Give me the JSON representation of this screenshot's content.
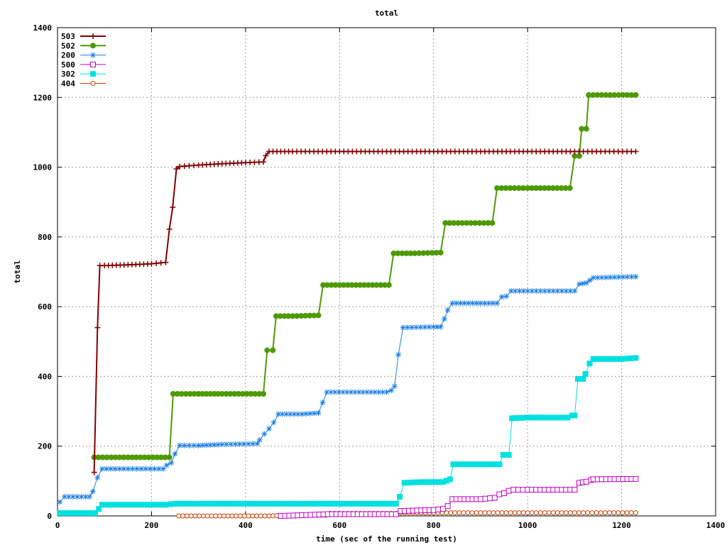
{
  "chart_data": {
    "type": "line",
    "title": "total",
    "xlabel": "time (sec of the running test)",
    "ylabel": "total",
    "xlim": [
      0,
      1400
    ],
    "ylim": [
      0,
      1400
    ],
    "xticks": [
      0,
      200,
      400,
      600,
      800,
      1000,
      1200,
      1400
    ],
    "yticks": [
      0,
      200,
      400,
      600,
      800,
      1000,
      1200,
      1400
    ],
    "grid": true,
    "legend_position": "top-left",
    "series": [
      {
        "name": "503",
        "color": "#800000",
        "marker": "plus",
        "points": [
          [
            78,
            125
          ],
          [
            85,
            540
          ],
          [
            90,
            718
          ],
          [
            100,
            718
          ],
          [
            150,
            720
          ],
          [
            200,
            723
          ],
          [
            230,
            727
          ],
          [
            238,
            822
          ],
          [
            245,
            885
          ],
          [
            253,
            995
          ],
          [
            260,
            1002
          ],
          [
            300,
            1006
          ],
          [
            350,
            1010
          ],
          [
            400,
            1013
          ],
          [
            438,
            1015
          ],
          [
            443,
            1033
          ],
          [
            450,
            1045
          ],
          [
            500,
            1045
          ],
          [
            600,
            1045
          ],
          [
            700,
            1045
          ],
          [
            800,
            1045
          ],
          [
            900,
            1045
          ],
          [
            1000,
            1045
          ],
          [
            1100,
            1045
          ],
          [
            1230,
            1045
          ]
        ]
      },
      {
        "name": "502",
        "color": "#4e9a06",
        "marker": "filled-circle",
        "points": [
          [
            78,
            168
          ],
          [
            150,
            168
          ],
          [
            238,
            168
          ],
          [
            246,
            350
          ],
          [
            300,
            350
          ],
          [
            350,
            350
          ],
          [
            438,
            350
          ],
          [
            446,
            475
          ],
          [
            458,
            475
          ],
          [
            465,
            573
          ],
          [
            500,
            573
          ],
          [
            555,
            575
          ],
          [
            565,
            662
          ],
          [
            600,
            662
          ],
          [
            705,
            662
          ],
          [
            715,
            753
          ],
          [
            760,
            753
          ],
          [
            815,
            755
          ],
          [
            825,
            840
          ],
          [
            870,
            840
          ],
          [
            925,
            840
          ],
          [
            935,
            940
          ],
          [
            1000,
            940
          ],
          [
            1090,
            940
          ],
          [
            1100,
            1032
          ],
          [
            1110,
            1032
          ],
          [
            1115,
            1110
          ],
          [
            1125,
            1110
          ],
          [
            1130,
            1207
          ],
          [
            1230,
            1207
          ]
        ]
      },
      {
        "name": "200",
        "color": "#1e7fe0",
        "marker": "star",
        "points": [
          [
            5,
            40
          ],
          [
            15,
            55
          ],
          [
            60,
            55
          ],
          [
            68,
            55
          ],
          [
            75,
            70
          ],
          [
            85,
            110
          ],
          [
            95,
            135
          ],
          [
            150,
            135
          ],
          [
            225,
            135
          ],
          [
            232,
            145
          ],
          [
            242,
            152
          ],
          [
            250,
            178
          ],
          [
            260,
            202
          ],
          [
            300,
            202
          ],
          [
            350,
            205
          ],
          [
            425,
            207
          ],
          [
            430,
            218
          ],
          [
            440,
            235
          ],
          [
            450,
            250
          ],
          [
            460,
            268
          ],
          [
            470,
            292
          ],
          [
            520,
            292
          ],
          [
            555,
            295
          ],
          [
            573,
            355
          ],
          [
            650,
            355
          ],
          [
            700,
            355
          ],
          [
            710,
            360
          ],
          [
            717,
            372
          ],
          [
            725,
            462
          ],
          [
            735,
            540
          ],
          [
            800,
            542
          ],
          [
            815,
            542
          ],
          [
            823,
            565
          ],
          [
            830,
            590
          ],
          [
            840,
            610
          ],
          [
            900,
            610
          ],
          [
            935,
            610
          ],
          [
            945,
            628
          ],
          [
            955,
            630
          ],
          [
            965,
            645
          ],
          [
            1000,
            645
          ],
          [
            1100,
            645
          ],
          [
            1110,
            665
          ],
          [
            1125,
            668
          ],
          [
            1140,
            683
          ],
          [
            1230,
            686
          ]
        ]
      },
      {
        "name": "500",
        "color": "#c000c0",
        "marker": "open-square",
        "points": [
          [
            475,
            0
          ],
          [
            520,
            2
          ],
          [
            575,
            5
          ],
          [
            720,
            5
          ],
          [
            730,
            14
          ],
          [
            800,
            17
          ],
          [
            820,
            20
          ],
          [
            830,
            28
          ],
          [
            840,
            48
          ],
          [
            900,
            48
          ],
          [
            930,
            52
          ],
          [
            940,
            62
          ],
          [
            950,
            65
          ],
          [
            960,
            72
          ],
          [
            970,
            75
          ],
          [
            1000,
            75
          ],
          [
            1100,
            75
          ],
          [
            1110,
            95
          ],
          [
            1125,
            98
          ],
          [
            1135,
            103
          ],
          [
            1140,
            105
          ],
          [
            1230,
            106
          ]
        ]
      },
      {
        "name": "302",
        "color": "#00e0e0",
        "marker": "filled-square",
        "points": [
          [
            5,
            8
          ],
          [
            45,
            8
          ],
          [
            80,
            8
          ],
          [
            88,
            20
          ],
          [
            95,
            32
          ],
          [
            150,
            32
          ],
          [
            230,
            32
          ],
          [
            250,
            35
          ],
          [
            400,
            35
          ],
          [
            600,
            35
          ],
          [
            720,
            35
          ],
          [
            728,
            55
          ],
          [
            738,
            95
          ],
          [
            775,
            97
          ],
          [
            820,
            97
          ],
          [
            835,
            105
          ],
          [
            842,
            148
          ],
          [
            900,
            148
          ],
          [
            940,
            148
          ],
          [
            948,
            175
          ],
          [
            960,
            175
          ],
          [
            967,
            280
          ],
          [
            1000,
            282
          ],
          [
            1085,
            282
          ],
          [
            1095,
            288
          ],
          [
            1100,
            288
          ],
          [
            1107,
            393
          ],
          [
            1118,
            393
          ],
          [
            1123,
            407
          ],
          [
            1132,
            437
          ],
          [
            1140,
            450
          ],
          [
            1200,
            450
          ],
          [
            1230,
            453
          ]
        ]
      },
      {
        "name": "404",
        "color": "#c04000",
        "marker": "open-circle",
        "points": [
          [
            258,
            0
          ],
          [
            380,
            0
          ],
          [
            450,
            0
          ],
          [
            475,
            1
          ],
          [
            570,
            2
          ],
          [
            580,
            7
          ],
          [
            700,
            7
          ],
          [
            720,
            7
          ],
          [
            730,
            9
          ],
          [
            800,
            9
          ],
          [
            900,
            9
          ],
          [
            1000,
            9
          ],
          [
            1100,
            9
          ],
          [
            1230,
            9
          ]
        ]
      }
    ]
  }
}
